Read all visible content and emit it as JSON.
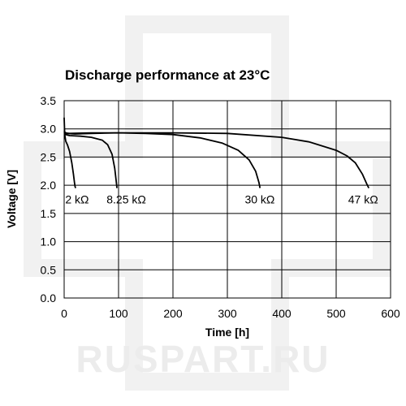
{
  "watermark": {
    "text": "RUSPART.RU",
    "color": "#ececec"
  },
  "chart_data": {
    "type": "line",
    "title": "Discharge performance at 23°C",
    "xlabel": "Time [h]",
    "ylabel": "Voltage [V]",
    "xlim": [
      0,
      600
    ],
    "ylim": [
      0,
      3.5
    ],
    "xticks": [
      0,
      100,
      200,
      300,
      400,
      500,
      600
    ],
    "yticks": [
      0.0,
      0.5,
      1.0,
      1.5,
      2.0,
      2.5,
      3.0,
      3.5
    ],
    "ytick_labels": [
      "0.0",
      "0.5",
      "1.0",
      "1.5",
      "2.0",
      "2.5",
      "3.0",
      "3.5"
    ],
    "grid": true,
    "line_color": "#000000",
    "series": [
      {
        "name": "2 kΩ",
        "x": [
          0,
          1,
          3,
          6,
          10,
          14,
          17,
          19,
          20,
          21
        ],
        "y": [
          3.2,
          2.9,
          2.78,
          2.72,
          2.6,
          2.4,
          2.2,
          2.05,
          1.98,
          1.95
        ]
      },
      {
        "name": "8.25 kΩ",
        "x": [
          0,
          3,
          10,
          30,
          50,
          70,
          80,
          88,
          93,
          96,
          97
        ],
        "y": [
          2.95,
          2.9,
          2.88,
          2.87,
          2.85,
          2.8,
          2.72,
          2.55,
          2.3,
          2.05,
          1.95
        ]
      },
      {
        "name": "30 kΩ",
        "x": [
          0,
          5,
          20,
          50,
          100,
          150,
          200,
          250,
          290,
          320,
          340,
          352,
          358,
          360
        ],
        "y": [
          2.95,
          2.92,
          2.91,
          2.92,
          2.93,
          2.92,
          2.9,
          2.84,
          2.75,
          2.62,
          2.45,
          2.25,
          2.05,
          1.95
        ]
      },
      {
        "name": "47 kΩ",
        "x": [
          0,
          10,
          50,
          100,
          200,
          300,
          400,
          450,
          500,
          520,
          535,
          548,
          556,
          560
        ],
        "y": [
          2.93,
          2.92,
          2.93,
          2.93,
          2.93,
          2.92,
          2.85,
          2.77,
          2.62,
          2.52,
          2.4,
          2.2,
          2.03,
          1.95
        ]
      }
    ],
    "annotations": [
      {
        "text": "2 kΩ",
        "x": 2,
        "y": 1.75
      },
      {
        "text": "8.25 kΩ",
        "x": 78,
        "y": 1.75
      },
      {
        "text": "30 kΩ",
        "x": 332,
        "y": 1.75
      },
      {
        "text": "47 kΩ",
        "x": 522,
        "y": 1.75
      }
    ]
  }
}
